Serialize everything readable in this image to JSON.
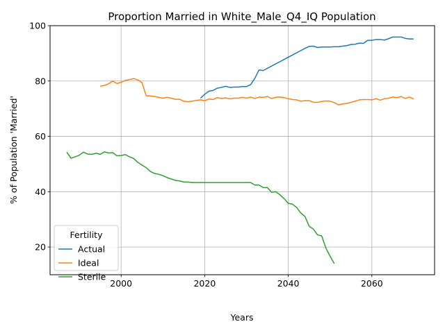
{
  "chart_data": {
    "type": "line",
    "title": "Proportion Married in White_Male_Q4_IQ Population",
    "xlabel": "Years",
    "ylabel": "% of Population 'Married'",
    "xlim": [
      1983,
      2075
    ],
    "ylim": [
      10,
      100
    ],
    "xticks": [
      2000,
      2020,
      2040,
      2060
    ],
    "yticks": [
      20,
      40,
      60,
      80,
      100
    ],
    "grid": true,
    "legend": {
      "title": "Fertility",
      "placement": "lower-left"
    },
    "series": [
      {
        "name": "Actual",
        "color": "#1f77b4",
        "points": [
          [
            2019,
            73.8
          ],
          [
            2020,
            75.2
          ],
          [
            2021,
            76.3
          ],
          [
            2022,
            76.6
          ],
          [
            2023,
            77.4
          ],
          [
            2024,
            77.7
          ],
          [
            2025,
            78.1
          ],
          [
            2026,
            77.7
          ],
          [
            2027,
            77.8
          ],
          [
            2028,
            77.8
          ],
          [
            2029,
            78.0
          ],
          [
            2030,
            78.0
          ],
          [
            2031,
            78.7
          ],
          [
            2032,
            81.0
          ],
          [
            2033,
            84.0
          ],
          [
            2034,
            83.8
          ],
          [
            2035,
            84.6
          ],
          [
            2036,
            85.4
          ],
          [
            2037,
            86.2
          ],
          [
            2038,
            87.0
          ],
          [
            2039,
            87.8
          ],
          [
            2040,
            88.6
          ],
          [
            2041,
            89.4
          ],
          [
            2042,
            90.2
          ],
          [
            2043,
            91.0
          ],
          [
            2044,
            91.8
          ],
          [
            2045,
            92.5
          ],
          [
            2046,
            92.6
          ],
          [
            2047,
            92.1
          ],
          [
            2048,
            92.3
          ],
          [
            2049,
            92.3
          ],
          [
            2050,
            92.3
          ],
          [
            2051,
            92.4
          ],
          [
            2052,
            92.4
          ],
          [
            2053,
            92.6
          ],
          [
            2054,
            92.8
          ],
          [
            2055,
            93.2
          ],
          [
            2056,
            93.3
          ],
          [
            2057,
            93.7
          ],
          [
            2058,
            93.6
          ],
          [
            2059,
            94.7
          ],
          [
            2060,
            94.7
          ],
          [
            2061,
            95.0
          ],
          [
            2062,
            95.0
          ],
          [
            2063,
            94.8
          ],
          [
            2064,
            95.3
          ],
          [
            2065,
            95.9
          ],
          [
            2066,
            95.9
          ],
          [
            2067,
            95.9
          ],
          [
            2068,
            95.4
          ],
          [
            2069,
            95.2
          ],
          [
            2070,
            95.2
          ]
        ]
      },
      {
        "name": "Ideal",
        "color": "#ff7f0e",
        "points": [
          [
            1995,
            78.1
          ],
          [
            1996,
            78.4
          ],
          [
            1997,
            79.0
          ],
          [
            1998,
            80.0
          ],
          [
            1999,
            79.1
          ],
          [
            2000,
            79.5
          ],
          [
            2001,
            80.2
          ],
          [
            2002,
            80.5
          ],
          [
            2003,
            80.9
          ],
          [
            2004,
            80.4
          ],
          [
            2005,
            79.4
          ],
          [
            2006,
            74.7
          ],
          [
            2007,
            74.6
          ],
          [
            2008,
            74.4
          ],
          [
            2009,
            74.1
          ],
          [
            2010,
            73.8
          ],
          [
            2011,
            74.1
          ],
          [
            2012,
            73.8
          ],
          [
            2013,
            73.4
          ],
          [
            2014,
            73.4
          ],
          [
            2015,
            72.7
          ],
          [
            2016,
            72.5
          ],
          [
            2017,
            72.7
          ],
          [
            2018,
            73.0
          ],
          [
            2019,
            73.2
          ],
          [
            2020,
            72.9
          ],
          [
            2021,
            73.5
          ],
          [
            2022,
            73.3
          ],
          [
            2023,
            74.0
          ],
          [
            2024,
            73.7
          ],
          [
            2025,
            73.9
          ],
          [
            2026,
            73.6
          ],
          [
            2027,
            73.8
          ],
          [
            2028,
            73.8
          ],
          [
            2029,
            74.1
          ],
          [
            2030,
            73.8
          ],
          [
            2031,
            74.2
          ],
          [
            2032,
            73.7
          ],
          [
            2033,
            74.2
          ],
          [
            2034,
            74.1
          ],
          [
            2035,
            74.4
          ],
          [
            2036,
            73.7
          ],
          [
            2037,
            74.1
          ],
          [
            2038,
            74.2
          ],
          [
            2039,
            74.0
          ],
          [
            2040,
            73.6
          ],
          [
            2041,
            73.3
          ],
          [
            2042,
            73.2
          ],
          [
            2043,
            72.7
          ],
          [
            2044,
            72.9
          ],
          [
            2045,
            72.9
          ],
          [
            2046,
            72.3
          ],
          [
            2047,
            72.3
          ],
          [
            2048,
            72.6
          ],
          [
            2049,
            72.8
          ],
          [
            2050,
            72.7
          ],
          [
            2051,
            72.2
          ],
          [
            2052,
            71.4
          ],
          [
            2053,
            71.7
          ],
          [
            2054,
            71.9
          ],
          [
            2055,
            72.3
          ],
          [
            2056,
            72.7
          ],
          [
            2057,
            73.2
          ],
          [
            2058,
            73.3
          ],
          [
            2059,
            73.3
          ],
          [
            2060,
            73.2
          ],
          [
            2061,
            73.6
          ],
          [
            2062,
            73.1
          ],
          [
            2063,
            73.6
          ],
          [
            2064,
            73.8
          ],
          [
            2065,
            74.2
          ],
          [
            2066,
            74.0
          ],
          [
            2067,
            74.4
          ],
          [
            2068,
            73.7
          ],
          [
            2069,
            74.2
          ],
          [
            2070,
            73.5
          ]
        ]
      },
      {
        "name": "Sterile",
        "color": "#2ca02c",
        "points": [
          [
            1987,
            54.3
          ],
          [
            1988,
            52.1
          ],
          [
            1989,
            52.6
          ],
          [
            1990,
            53.2
          ],
          [
            1991,
            54.3
          ],
          [
            1992,
            53.6
          ],
          [
            1993,
            53.5
          ],
          [
            1994,
            53.9
          ],
          [
            1995,
            53.5
          ],
          [
            1996,
            54.4
          ],
          [
            1997,
            54.0
          ],
          [
            1998,
            54.1
          ],
          [
            1999,
            53.0
          ],
          [
            2000,
            53.1
          ],
          [
            2001,
            53.4
          ],
          [
            2002,
            52.6
          ],
          [
            2003,
            52.0
          ],
          [
            2004,
            50.6
          ],
          [
            2005,
            49.6
          ],
          [
            2006,
            48.7
          ],
          [
            2007,
            47.3
          ],
          [
            2008,
            46.6
          ],
          [
            2009,
            46.3
          ],
          [
            2010,
            45.8
          ],
          [
            2011,
            45.1
          ],
          [
            2012,
            44.6
          ],
          [
            2013,
            44.1
          ],
          [
            2014,
            43.9
          ],
          [
            2015,
            43.5
          ],
          [
            2016,
            43.5
          ],
          [
            2017,
            43.3
          ],
          [
            2018,
            43.3
          ],
          [
            2019,
            43.3
          ],
          [
            2020,
            43.3
          ],
          [
            2021,
            43.3
          ],
          [
            2022,
            43.3
          ],
          [
            2023,
            43.3
          ],
          [
            2024,
            43.3
          ],
          [
            2025,
            43.3
          ],
          [
            2026,
            43.3
          ],
          [
            2027,
            43.3
          ],
          [
            2028,
            43.3
          ],
          [
            2029,
            43.3
          ],
          [
            2030,
            43.3
          ],
          [
            2031,
            43.3
          ],
          [
            2032,
            42.4
          ],
          [
            2033,
            42.4
          ],
          [
            2034,
            41.5
          ],
          [
            2035,
            41.5
          ],
          [
            2036,
            39.8
          ],
          [
            2037,
            40.0
          ],
          [
            2038,
            38.9
          ],
          [
            2039,
            37.5
          ],
          [
            2040,
            35.8
          ],
          [
            2041,
            35.5
          ],
          [
            2042,
            34.3
          ],
          [
            2043,
            32.3
          ],
          [
            2044,
            31.0
          ],
          [
            2045,
            27.5
          ],
          [
            2046,
            26.5
          ],
          [
            2047,
            24.4
          ],
          [
            2048,
            24.0
          ],
          [
            2049,
            19.6
          ],
          [
            2050,
            16.7
          ],
          [
            2051,
            14.0
          ]
        ]
      }
    ]
  }
}
